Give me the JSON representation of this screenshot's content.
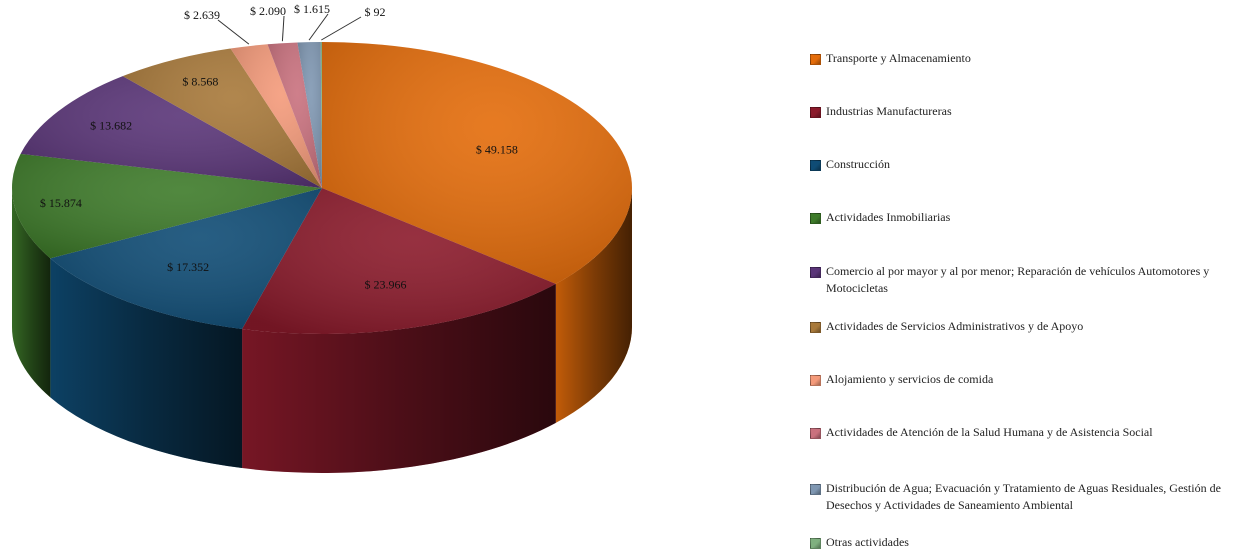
{
  "chart_data": {
    "type": "pie",
    "title": "",
    "unit_prefix": "$",
    "categories": [
      "Transporte y Almacenamiento",
      "Industrias Manufactureras",
      "Construcción",
      "Actividades Inmobiliarias",
      "Comercio al por mayor y al por menor; Reparación de vehículos Automotores y Motocicletas",
      "Actividades de Servicios Administrativos y de Apoyo",
      "Alojamiento y servicios de comida",
      "Actividades de Atención de la Salud Humana y de Asistencia Social",
      "Distribución de Agua; Evacuación y Tratamiento de Aguas Residuales, Gestión de Desechos y Actividades de Saneamiento Ambiental",
      "Otras actividades"
    ],
    "values": [
      49158,
      23966,
      17352,
      15874,
      13682,
      8568,
      2639,
      2090,
      1615,
      92
    ],
    "data_labels": [
      "$ 49.158",
      "$ 23.966",
      "$ 17.352",
      "$ 15.874",
      "$ 13.682",
      "$ 8.568",
      "$ 2.639",
      "$ 2.090",
      "$ 1.615",
      "$ 92"
    ],
    "colors": [
      "#E46C0A",
      "#8B1A2B",
      "#0F4C75",
      "#3E7B2A",
      "#5A3578",
      "#A8793A",
      "#F49A7A",
      "#C9717E",
      "#7F97B2",
      "#7FB07F"
    ],
    "legend_position": "right",
    "style": "3d"
  }
}
